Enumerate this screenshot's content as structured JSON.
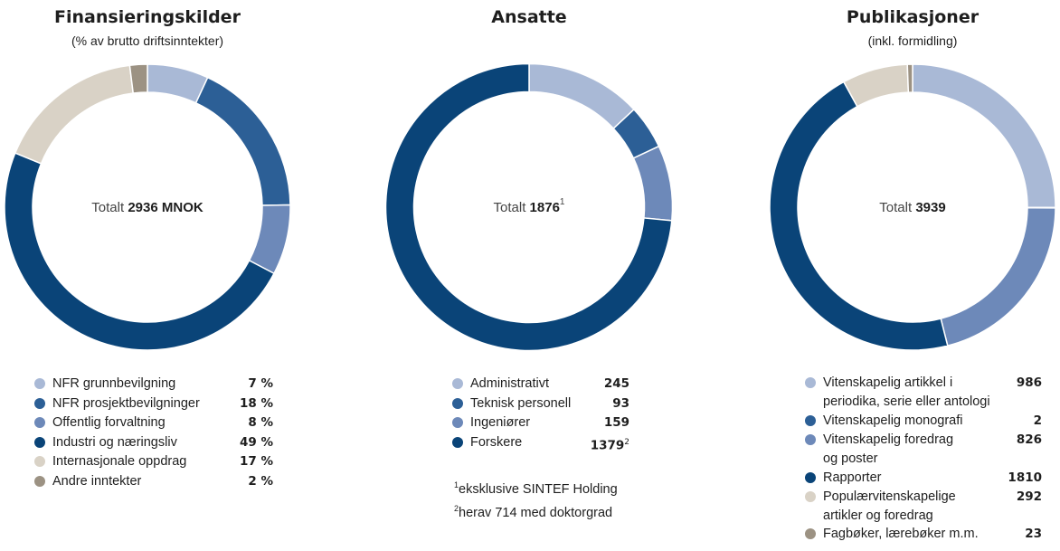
{
  "chart_data": [
    {
      "type": "pie",
      "variant": "donut",
      "title": "Finansieringskilder",
      "subtitle": "(% av brutto driftsinntekter)",
      "center_label": "Totalt",
      "center_value": "2936 MNOK",
      "value_suffix": " %",
      "categories": [
        "NFR grunnbevilgning",
        "NFR prosjektbevilgninger",
        "Offentlig forvaltning",
        "Industri og næringsliv",
        "Internasjonale oppdrag",
        "Andre inntekter"
      ],
      "values": [
        7,
        18,
        8,
        49,
        17,
        2
      ],
      "colors": [
        "#a9b9d6",
        "#2c5f96",
        "#6d89b9",
        "#0a4478",
        "#d9d2c6",
        "#9c9283"
      ]
    },
    {
      "type": "pie",
      "variant": "donut",
      "title": "Ansatte",
      "subtitle": "",
      "center_label": "Totalt",
      "center_value": "1876",
      "center_footnote": "1",
      "value_suffix": "",
      "categories": [
        "Administrativt",
        "Teknisk personell",
        "Ingeniører",
        "Forskere"
      ],
      "values": [
        245,
        93,
        159,
        1379
      ],
      "value_footnotes": [
        "",
        "",
        "",
        "2"
      ],
      "colors": [
        "#a9b9d6",
        "#2c5f96",
        "#6d89b9",
        "#0a4478"
      ],
      "footnotes": [
        {
          "mark": "1",
          "text": "eksklusive SINTEF Holding"
        },
        {
          "mark": "2",
          "text": "herav 714 med doktorgrad"
        }
      ]
    },
    {
      "type": "pie",
      "variant": "donut",
      "title": "Publikasjoner",
      "subtitle": "(inkl. formidling)",
      "center_label": "Totalt",
      "center_value": "3939",
      "value_suffix": "",
      "categories": [
        [
          "Vitenskapelig artikkel i",
          "periodika, serie eller antologi"
        ],
        [
          "Vitenskapelig monografi"
        ],
        [
          "Vitenskapelig foredrag",
          "og poster"
        ],
        [
          "Rapporter"
        ],
        [
          "Populærvitenskapelige",
          "artikler og foredrag"
        ],
        [
          "Fagbøker, lærebøker m.m."
        ]
      ],
      "values": [
        986,
        2,
        826,
        1810,
        292,
        23
      ],
      "colors": [
        "#a9b9d6",
        "#2c5f96",
        "#6d89b9",
        "#0a4478",
        "#d9d2c6",
        "#9c9283"
      ]
    }
  ]
}
